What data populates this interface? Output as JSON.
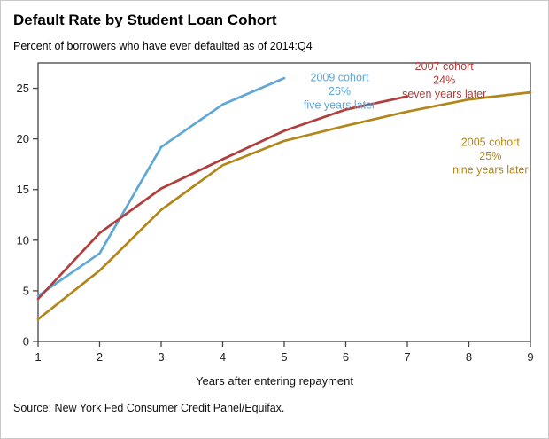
{
  "header": {
    "title": "Default Rate by Student Loan Cohort",
    "subtitle": "Percent of borrowers who have ever defaulted as of 2014:Q4"
  },
  "chart_data": {
    "type": "line",
    "xlabel": "Years after entering repayment",
    "xlim": [
      1,
      9
    ],
    "ylim": [
      0,
      27.5
    ],
    "xticks": [
      1,
      2,
      3,
      4,
      5,
      6,
      7,
      8,
      9
    ],
    "yticks": [
      0,
      5,
      10,
      15,
      20,
      25
    ],
    "grid": false,
    "frame_color": "#444444",
    "series": [
      {
        "name": "2009 cohort",
        "color": "#5FA7D7",
        "x": [
          1,
          2,
          3,
          4,
          5
        ],
        "values": [
          4.5,
          8.7,
          19.2,
          23.4,
          26
        ]
      },
      {
        "name": "2007 cohort",
        "color": "#B03E3C",
        "x": [
          1,
          2,
          3,
          4,
          5,
          6,
          7
        ],
        "values": [
          4.2,
          10.7,
          15.1,
          18.0,
          20.8,
          22.9,
          24.2
        ]
      },
      {
        "name": "2005 cohort",
        "color": "#B1871B",
        "x": [
          1,
          2,
          3,
          4,
          5,
          6,
          7,
          8,
          9
        ],
        "values": [
          2.2,
          7.0,
          13.0,
          17.4,
          19.8,
          21.3,
          22.7,
          23.9,
          24.6
        ]
      }
    ],
    "annotations": [
      {
        "lines": [
          "2009 cohort",
          "26%",
          "five years later"
        ],
        "color": "#5FA7D7",
        "x": 5.9,
        "y": 25.7
      },
      {
        "lines": [
          "2007 cohort",
          "24%",
          "seven years later"
        ],
        "color": "#B03E3C",
        "x": 7.6,
        "y": 26.8
      },
      {
        "lines": [
          "2005 cohort",
          "25%",
          "nine years later"
        ],
        "color": "#B1871B",
        "x": 8.35,
        "y": 19.3
      }
    ]
  },
  "source": "Source: New York Fed Consumer Credit Panel/Equifax."
}
